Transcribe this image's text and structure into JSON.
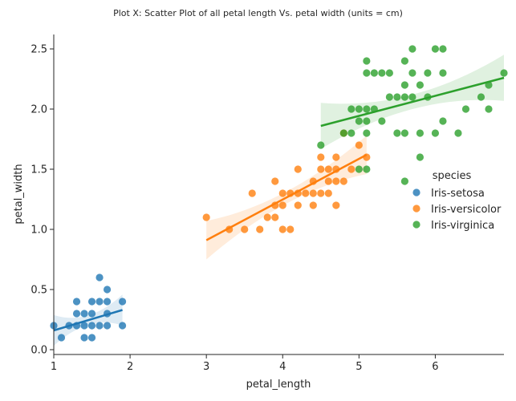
{
  "chart_data": {
    "type": "scatter",
    "title": "Plot X: Scatter Plot of all petal length Vs. petal width (units = cm)",
    "xlabel": "petal_length",
    "ylabel": "petal_width",
    "xlim": [
      1.0,
      6.9
    ],
    "ylim": [
      -0.04,
      2.62
    ],
    "xticks": [
      1,
      2,
      3,
      4,
      5,
      6
    ],
    "yticks": [
      0.0,
      0.5,
      1.0,
      1.5,
      2.0,
      2.5
    ],
    "xtick_labels": [
      "1",
      "2",
      "3",
      "4",
      "5",
      "6"
    ],
    "ytick_labels": [
      "0.0",
      "0.5",
      "1.0",
      "1.5",
      "2.0",
      "2.5"
    ],
    "grid": false,
    "legend": {
      "title": "species",
      "placement": "right"
    },
    "series": [
      {
        "name": "Iris-setosa",
        "color": "#1f77b4",
        "points": [
          [
            1.0,
            0.2
          ],
          [
            1.1,
            0.1
          ],
          [
            1.2,
            0.2
          ],
          [
            1.3,
            0.2
          ],
          [
            1.3,
            0.3
          ],
          [
            1.3,
            0.4
          ],
          [
            1.4,
            0.1
          ],
          [
            1.4,
            0.2
          ],
          [
            1.4,
            0.3
          ],
          [
            1.5,
            0.1
          ],
          [
            1.5,
            0.2
          ],
          [
            1.5,
            0.3
          ],
          [
            1.5,
            0.4
          ],
          [
            1.6,
            0.2
          ],
          [
            1.6,
            0.4
          ],
          [
            1.6,
            0.6
          ],
          [
            1.7,
            0.2
          ],
          [
            1.7,
            0.3
          ],
          [
            1.7,
            0.4
          ],
          [
            1.7,
            0.5
          ],
          [
            1.9,
            0.2
          ],
          [
            1.9,
            0.4
          ]
        ],
        "fit": {
          "x": [
            1.0,
            1.9
          ],
          "y": [
            0.16,
            0.33
          ]
        }
      },
      {
        "name": "Iris-versicolor",
        "color": "#ff7f0e",
        "points": [
          [
            3.0,
            1.1
          ],
          [
            3.3,
            1.0
          ],
          [
            3.5,
            1.0
          ],
          [
            3.6,
            1.3
          ],
          [
            3.7,
            1.0
          ],
          [
            3.8,
            1.1
          ],
          [
            3.9,
            1.1
          ],
          [
            3.9,
            1.2
          ],
          [
            3.9,
            1.4
          ],
          [
            4.0,
            1.0
          ],
          [
            4.0,
            1.2
          ],
          [
            4.0,
            1.3
          ],
          [
            4.1,
            1.0
          ],
          [
            4.1,
            1.3
          ],
          [
            4.2,
            1.2
          ],
          [
            4.2,
            1.3
          ],
          [
            4.2,
            1.5
          ],
          [
            4.3,
            1.3
          ],
          [
            4.4,
            1.2
          ],
          [
            4.4,
            1.3
          ],
          [
            4.4,
            1.4
          ],
          [
            4.5,
            1.3
          ],
          [
            4.5,
            1.5
          ],
          [
            4.5,
            1.6
          ],
          [
            4.6,
            1.3
          ],
          [
            4.6,
            1.4
          ],
          [
            4.6,
            1.5
          ],
          [
            4.7,
            1.2
          ],
          [
            4.7,
            1.4
          ],
          [
            4.7,
            1.5
          ],
          [
            4.7,
            1.6
          ],
          [
            4.8,
            1.4
          ],
          [
            4.8,
            1.8
          ],
          [
            4.9,
            1.5
          ],
          [
            5.0,
            1.7
          ],
          [
            5.1,
            1.6
          ]
        ],
        "fit": {
          "x": [
            3.0,
            5.1
          ],
          "y": [
            0.91,
            1.62
          ]
        }
      },
      {
        "name": "Iris-virginica",
        "color": "#2ca02c",
        "points": [
          [
            4.5,
            1.7
          ],
          [
            4.8,
            1.8
          ],
          [
            4.9,
            1.8
          ],
          [
            4.9,
            2.0
          ],
          [
            5.0,
            1.5
          ],
          [
            5.0,
            1.9
          ],
          [
            5.0,
            2.0
          ],
          [
            5.1,
            1.5
          ],
          [
            5.1,
            1.8
          ],
          [
            5.1,
            1.9
          ],
          [
            5.1,
            2.0
          ],
          [
            5.1,
            2.3
          ],
          [
            5.1,
            2.4
          ],
          [
            5.2,
            2.0
          ],
          [
            5.2,
            2.3
          ],
          [
            5.3,
            1.9
          ],
          [
            5.3,
            2.3
          ],
          [
            5.4,
            2.1
          ],
          [
            5.4,
            2.3
          ],
          [
            5.5,
            1.8
          ],
          [
            5.5,
            2.1
          ],
          [
            5.6,
            1.4
          ],
          [
            5.6,
            1.8
          ],
          [
            5.6,
            2.1
          ],
          [
            5.6,
            2.2
          ],
          [
            5.6,
            2.4
          ],
          [
            5.7,
            2.1
          ],
          [
            5.7,
            2.3
          ],
          [
            5.7,
            2.5
          ],
          [
            5.8,
            1.6
          ],
          [
            5.8,
            1.8
          ],
          [
            5.8,
            2.2
          ],
          [
            5.9,
            2.1
          ],
          [
            5.9,
            2.3
          ],
          [
            6.0,
            1.8
          ],
          [
            6.0,
            2.5
          ],
          [
            6.1,
            1.9
          ],
          [
            6.1,
            2.3
          ],
          [
            6.1,
            2.5
          ],
          [
            6.3,
            1.8
          ],
          [
            6.4,
            2.0
          ],
          [
            6.6,
            2.1
          ],
          [
            6.7,
            2.0
          ],
          [
            6.7,
            2.2
          ],
          [
            6.9,
            2.3
          ]
        ],
        "fit": {
          "x": [
            4.5,
            6.9
          ],
          "y": [
            1.86,
            2.26
          ]
        }
      }
    ]
  }
}
